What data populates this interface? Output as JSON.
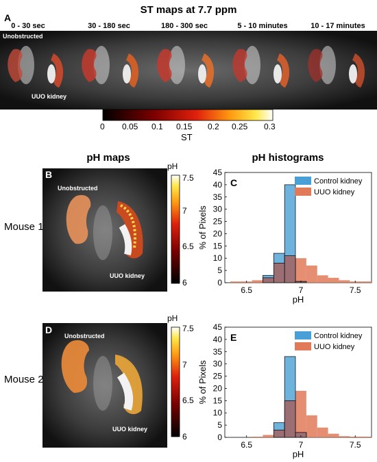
{
  "figure": {
    "title": "ST maps at 7.7 ppm",
    "panel_a": {
      "letter": "A",
      "time_labels": [
        "0 - 30 sec",
        "30 - 180 sec",
        "180 - 300 sec",
        "5 - 10 minutes",
        "10 - 17 minutes"
      ],
      "unobstructed_label": "Unobstructed",
      "uuo_label": "UUO kidney",
      "colorbar_ticks": [
        "0",
        "0.05",
        "0.1",
        "0.15",
        "0.2",
        "0.25",
        "0.3"
      ],
      "colorbar_label": "ST"
    },
    "ph_maps_title": "pH maps",
    "ph_histograms_title": "pH histograms",
    "mouse1_label": "Mouse 1",
    "mouse2_label": "Mouse 2",
    "panel_b": {
      "letter": "B",
      "unobstructed_label": "Unobstructed",
      "uuo_label": "UUO kidney"
    },
    "panel_d": {
      "letter": "D",
      "unobstructed_label": "Unobstructed",
      "uuo_label": "UUO kidney"
    },
    "ph_colorbar": {
      "label": "pH",
      "ticks": [
        "7.5",
        "7",
        "6.5",
        "6"
      ]
    },
    "colors": {
      "control": "#4a9fd6",
      "uuo": "#e07a58",
      "overlap": "#9a6e73"
    }
  },
  "chart_data": [
    {
      "panel": "C",
      "type": "bar",
      "xlabel": "pH",
      "ylabel": "% of Pixels",
      "xlim": [
        6.3,
        7.65
      ],
      "ylim": [
        0,
        45
      ],
      "xticks": [
        "6.5",
        "7",
        "7.5"
      ],
      "yticks": [
        "0",
        "5",
        "10",
        "15",
        "20",
        "25",
        "30",
        "35",
        "40",
        "45"
      ],
      "legend_position": "top-right",
      "series": [
        {
          "name": "Control kidney",
          "bins": [
            [
              6.65,
              6.75,
              3
            ],
            [
              6.75,
              6.85,
              12
            ],
            [
              6.85,
              6.95,
              40
            ],
            [
              6.95,
              7.05,
              0.5
            ]
          ]
        },
        {
          "name": "UUO kidney",
          "bins": [
            [
              6.35,
              6.45,
              0.5
            ],
            [
              6.45,
              6.55,
              0.5
            ],
            [
              6.55,
              6.65,
              1
            ],
            [
              6.65,
              6.75,
              2
            ],
            [
              6.75,
              6.85,
              8
            ],
            [
              6.85,
              6.95,
              11
            ],
            [
              6.95,
              7.05,
              10
            ],
            [
              7.05,
              7.15,
              7
            ],
            [
              7.15,
              7.25,
              3
            ],
            [
              7.25,
              7.35,
              2
            ],
            [
              7.35,
              7.45,
              1
            ],
            [
              7.45,
              7.55,
              0.5
            ],
            [
              7.55,
              7.65,
              0.5
            ]
          ]
        }
      ]
    },
    {
      "panel": "E",
      "type": "bar",
      "xlabel": "pH",
      "ylabel": "% of Pixels",
      "xlim": [
        6.3,
        7.65
      ],
      "ylim": [
        0,
        45
      ],
      "xticks": [
        "6.5",
        "7",
        "7.5"
      ],
      "yticks": [
        "0",
        "5",
        "10",
        "15",
        "20",
        "25",
        "30",
        "35",
        "40",
        "45"
      ],
      "legend_position": "top-right",
      "series": [
        {
          "name": "Control kidney",
          "bins": [
            [
              6.75,
              6.85,
              6
            ],
            [
              6.85,
              6.95,
              33
            ],
            [
              6.95,
              7.05,
              2
            ]
          ]
        },
        {
          "name": "UUO kidney",
          "bins": [
            [
              6.55,
              6.65,
              0.3
            ],
            [
              6.65,
              6.75,
              1
            ],
            [
              6.75,
              6.85,
              3
            ],
            [
              6.85,
              6.95,
              15
            ],
            [
              6.95,
              7.05,
              19
            ],
            [
              7.05,
              7.15,
              9
            ],
            [
              7.15,
              7.25,
              4
            ],
            [
              7.25,
              7.35,
              1.5
            ],
            [
              7.35,
              7.45,
              0.5
            ],
            [
              7.45,
              7.55,
              0.3
            ],
            [
              7.55,
              7.65,
              0.3
            ]
          ]
        }
      ]
    }
  ]
}
